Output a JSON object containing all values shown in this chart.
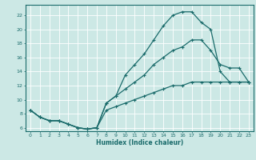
{
  "xlabel": "Humidex (Indice chaleur)",
  "bg_color": "#cce8e5",
  "line_color": "#1a6b6b",
  "grid_color": "#ffffff",
  "xlim": [
    -0.5,
    23.5
  ],
  "ylim": [
    5.5,
    23.5
  ],
  "xticks": [
    0,
    1,
    2,
    3,
    4,
    5,
    6,
    7,
    8,
    9,
    10,
    11,
    12,
    13,
    14,
    15,
    16,
    17,
    18,
    19,
    20,
    21,
    22,
    23
  ],
  "yticks": [
    6,
    8,
    10,
    12,
    14,
    16,
    18,
    20,
    22
  ],
  "line1_x": [
    0,
    1,
    2,
    3,
    4,
    5,
    6,
    7,
    8,
    9,
    10,
    11,
    12,
    13,
    14,
    15,
    16,
    17,
    18,
    19,
    20,
    21,
    22,
    23
  ],
  "line1_y": [
    8.5,
    7.5,
    7.0,
    7.0,
    6.5,
    6.0,
    5.8,
    6.0,
    9.5,
    10.5,
    13.5,
    15.0,
    16.5,
    18.5,
    20.5,
    22.0,
    22.5,
    22.5,
    21.0,
    20.0,
    14.0,
    12.5,
    12.5,
    12.5
  ],
  "line2_x": [
    0,
    1,
    2,
    3,
    4,
    5,
    6,
    7,
    8,
    9,
    10,
    11,
    12,
    13,
    14,
    15,
    16,
    17,
    18,
    19,
    20,
    21,
    22,
    23
  ],
  "line2_y": [
    8.5,
    7.5,
    7.0,
    7.0,
    6.5,
    6.0,
    5.8,
    6.0,
    9.5,
    10.5,
    11.5,
    12.5,
    13.5,
    15.0,
    16.0,
    17.0,
    17.5,
    18.5,
    18.5,
    17.0,
    15.0,
    14.5,
    14.5,
    12.5
  ],
  "line3_x": [
    0,
    1,
    2,
    3,
    4,
    5,
    6,
    7,
    8,
    9,
    10,
    11,
    12,
    13,
    14,
    15,
    16,
    17,
    18,
    19,
    20,
    21,
    22,
    23
  ],
  "line3_y": [
    8.5,
    7.5,
    7.0,
    7.0,
    6.5,
    6.0,
    5.8,
    6.0,
    8.5,
    9.0,
    9.5,
    10.0,
    10.5,
    11.0,
    11.5,
    12.0,
    12.0,
    12.5,
    12.5,
    12.5,
    12.5,
    12.5,
    12.5,
    12.5
  ]
}
